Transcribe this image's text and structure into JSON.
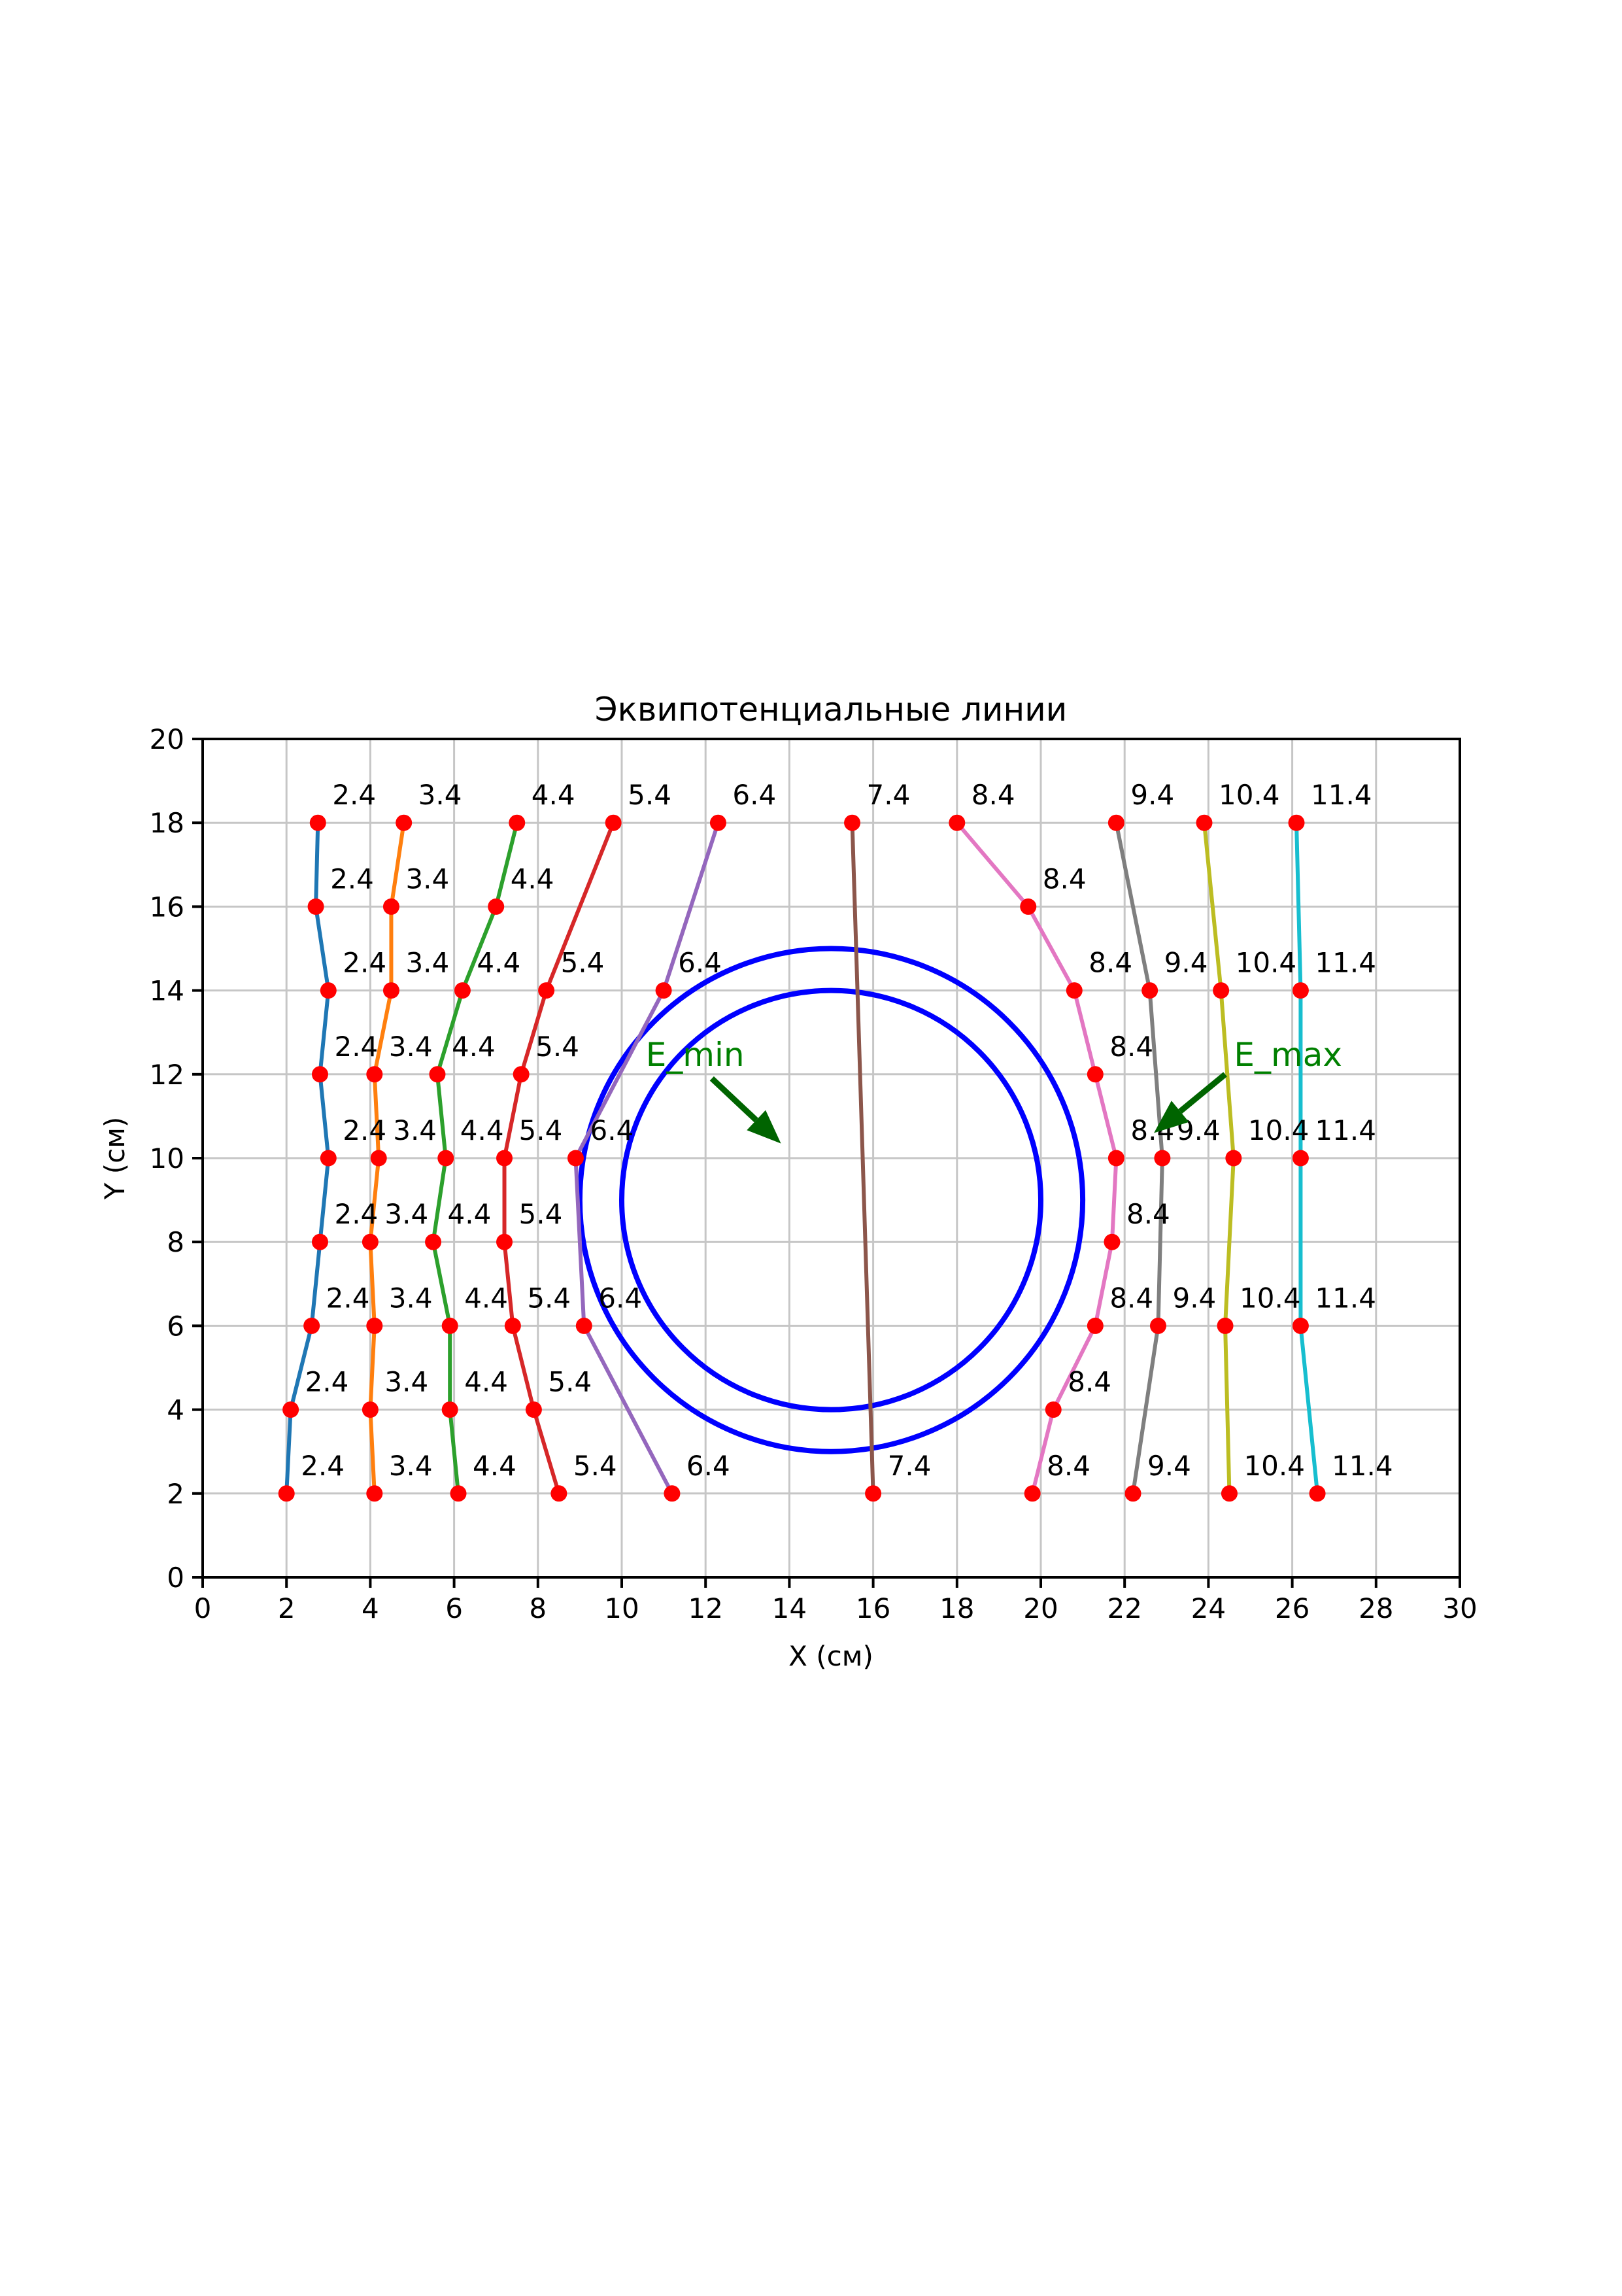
{
  "chart_data": {
    "type": "line",
    "title": "Эквипотенциальные линии",
    "xlabel": "X (см)",
    "ylabel": "Y (см)",
    "xlim": [
      0,
      30
    ],
    "ylim": [
      0,
      20
    ],
    "xticks": [
      0,
      2,
      4,
      6,
      8,
      10,
      12,
      14,
      16,
      18,
      20,
      22,
      24,
      26,
      28,
      30
    ],
    "yticks": [
      0,
      2,
      4,
      6,
      8,
      10,
      12,
      14,
      16,
      18,
      20
    ],
    "grid": true,
    "grid_color": "#c6c6c6",
    "legend": false,
    "marker_color": "#ff0000",
    "series": [
      {
        "name": "2.4",
        "color": "#1f77b4",
        "points": [
          [
            2.75,
            18
          ],
          [
            2.7,
            16
          ],
          [
            3.0,
            14
          ],
          [
            2.8,
            12
          ],
          [
            3.0,
            10
          ],
          [
            2.8,
            8
          ],
          [
            2.6,
            6
          ],
          [
            2.1,
            4
          ],
          [
            2.0,
            2
          ]
        ]
      },
      {
        "name": "3.4",
        "color": "#ff7f0e",
        "points": [
          [
            4.8,
            18
          ],
          [
            4.5,
            16
          ],
          [
            4.5,
            14
          ],
          [
            4.1,
            12
          ],
          [
            4.2,
            10
          ],
          [
            4.0,
            8
          ],
          [
            4.1,
            6
          ],
          [
            4.0,
            4
          ],
          [
            4.1,
            2
          ]
        ]
      },
      {
        "name": "4.4",
        "color": "#2ca02c",
        "points": [
          [
            7.5,
            18
          ],
          [
            7.0,
            16
          ],
          [
            6.2,
            14
          ],
          [
            5.6,
            12
          ],
          [
            5.8,
            10
          ],
          [
            5.5,
            8
          ],
          [
            5.9,
            6
          ],
          [
            5.9,
            4
          ],
          [
            6.1,
            2
          ]
        ]
      },
      {
        "name": "5.4",
        "color": "#d62728",
        "points": [
          [
            9.8,
            18
          ],
          [
            8.2,
            14
          ],
          [
            7.6,
            12
          ],
          [
            7.2,
            10
          ],
          [
            7.2,
            8
          ],
          [
            7.4,
            6
          ],
          [
            7.9,
            4
          ],
          [
            8.5,
            2
          ]
        ]
      },
      {
        "name": "6.4",
        "color": "#9467bd",
        "points": [
          [
            12.3,
            18
          ],
          [
            11.0,
            14
          ],
          [
            8.9,
            10
          ],
          [
            9.1,
            6
          ],
          [
            11.2,
            2
          ]
        ]
      },
      {
        "name": "7.4",
        "color": "#8c564b",
        "points": [
          [
            15.5,
            18
          ],
          [
            16.0,
            2
          ]
        ]
      },
      {
        "name": "8.4",
        "color": "#e377c2",
        "points": [
          [
            18.0,
            18
          ],
          [
            19.7,
            16
          ],
          [
            20.8,
            14
          ],
          [
            21.3,
            12
          ],
          [
            21.8,
            10
          ],
          [
            21.7,
            8
          ],
          [
            21.3,
            6
          ],
          [
            20.3,
            4
          ],
          [
            19.8,
            2
          ]
        ]
      },
      {
        "name": "9.4",
        "color": "#7f7f7f",
        "points": [
          [
            21.8,
            18
          ],
          [
            22.6,
            14
          ],
          [
            22.9,
            10
          ],
          [
            22.8,
            6
          ],
          [
            22.2,
            2
          ]
        ]
      },
      {
        "name": "10.4",
        "color": "#bcbd22",
        "points": [
          [
            23.9,
            18
          ],
          [
            24.3,
            14
          ],
          [
            24.6,
            10
          ],
          [
            24.4,
            6
          ],
          [
            24.5,
            2
          ]
        ]
      },
      {
        "name": "11.4",
        "color": "#17becf",
        "points": [
          [
            26.1,
            18
          ],
          [
            26.2,
            14
          ],
          [
            26.2,
            10
          ],
          [
            26.2,
            6
          ],
          [
            26.6,
            2
          ]
        ]
      }
    ],
    "circles": {
      "color": "#0000ff",
      "items": [
        {
          "cx": 15,
          "cy": 9,
          "r": 6
        },
        {
          "cx": 15,
          "cy": 9,
          "r": 5
        }
      ]
    },
    "annotations": [
      {
        "text": "E_min",
        "text_color": "#008000",
        "arrow_color": "#006400",
        "text_x": 11.75,
        "text_y": 12.2,
        "arrow_from": [
          12.15,
          11.9
        ],
        "arrow_to": [
          13.8,
          10.35
        ]
      },
      {
        "text": "E_max",
        "text_color": "#008000",
        "arrow_color": "#006400",
        "text_x": 25.9,
        "text_y": 12.2,
        "arrow_from": [
          24.4,
          12.0
        ],
        "arrow_to": [
          22.7,
          10.6
        ]
      }
    ]
  }
}
